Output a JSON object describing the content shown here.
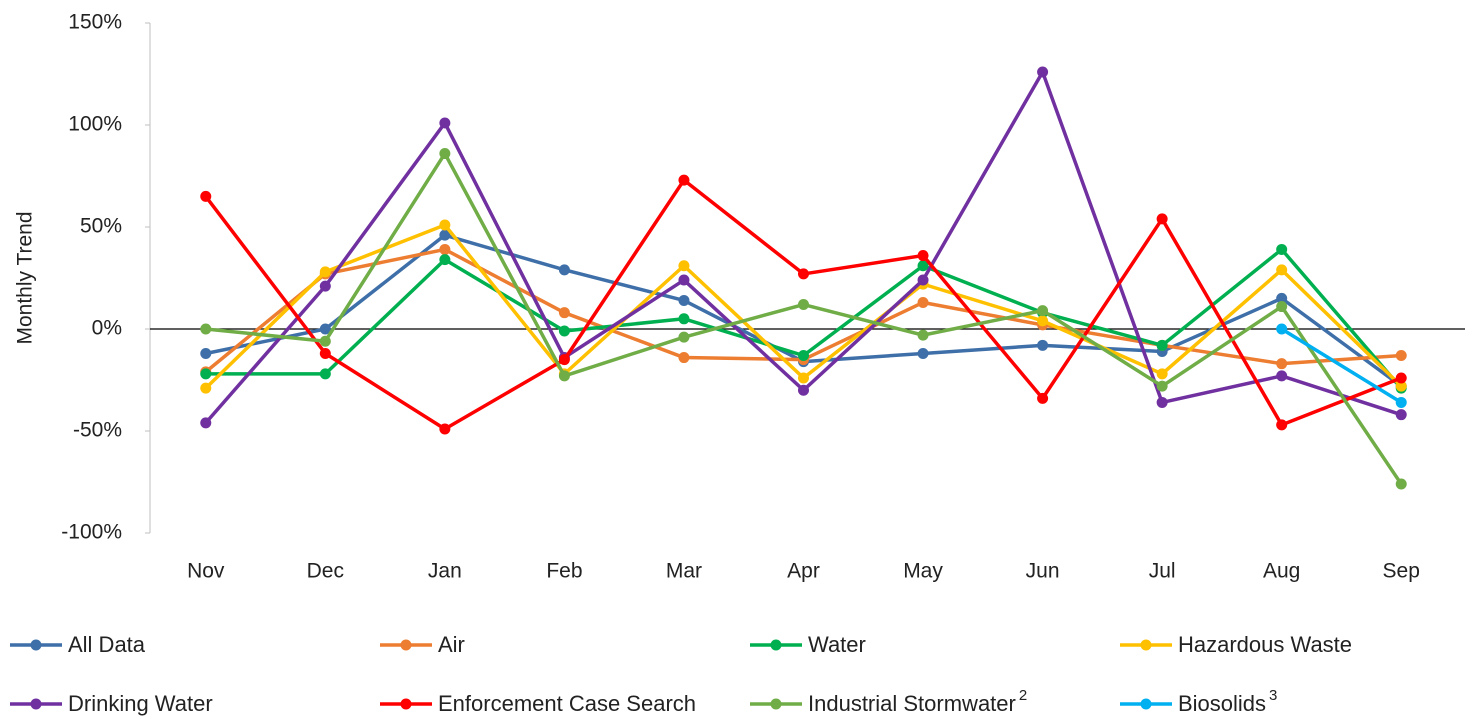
{
  "chart_data": {
    "type": "line",
    "y_axis_label": "Monthly Trend",
    "categories": [
      "Nov",
      "Dec",
      "Jan",
      "Feb",
      "Mar",
      "Apr",
      "May",
      "Jun",
      "Jul",
      "Aug",
      "Sep"
    ],
    "ylim": [
      -100,
      150
    ],
    "yticks": [
      {
        "value": -100,
        "label": "-100%"
      },
      {
        "value": -50,
        "label": "-50%"
      },
      {
        "value": 0,
        "label": "0%"
      },
      {
        "value": 50,
        "label": "50%"
      },
      {
        "value": 100,
        "label": "100%"
      },
      {
        "value": 150,
        "label": "150%"
      }
    ],
    "legend": "bottom",
    "series": [
      {
        "name": "All Data",
        "color": "#3e6fa8",
        "values": [
          -12,
          0,
          46,
          29,
          14,
          -16,
          -12,
          -8,
          -11,
          15,
          -28
        ]
      },
      {
        "name": "Air",
        "color": "#ed7d31",
        "values": [
          -21,
          27,
          39,
          8,
          -14,
          -15,
          13,
          2,
          -8,
          -17,
          -13
        ]
      },
      {
        "name": "Water",
        "color": "#00b050",
        "values": [
          -22,
          -22,
          34,
          -1,
          5,
          -13,
          31,
          8,
          -8,
          39,
          -29
        ]
      },
      {
        "name": "Hazardous Waste",
        "color": "#ffc000",
        "values": [
          -29,
          28,
          51,
          -22,
          31,
          -24,
          22,
          4,
          -22,
          29,
          -28
        ]
      },
      {
        "name": "Drinking Water",
        "color": "#7030a0",
        "values": [
          -46,
          21,
          101,
          -14,
          24,
          -30,
          24,
          126,
          -36,
          -23,
          -42
        ]
      },
      {
        "name": "Enforcement Case Search",
        "color": "#ff0000",
        "values": [
          65,
          -12,
          -49,
          -15,
          73,
          27,
          36,
          -34,
          54,
          -47,
          -24
        ]
      },
      {
        "name": "Industrial Stormwater",
        "superscript": "2",
        "color": "#70ad47",
        "values": [
          0,
          -6,
          86,
          -23,
          -4,
          12,
          -3,
          9,
          -28,
          11,
          -76
        ]
      },
      {
        "name": "Biosolids",
        "superscript": "3",
        "color": "#00b0f0",
        "values": [
          null,
          null,
          null,
          null,
          null,
          null,
          null,
          null,
          null,
          0,
          -36
        ]
      }
    ]
  }
}
